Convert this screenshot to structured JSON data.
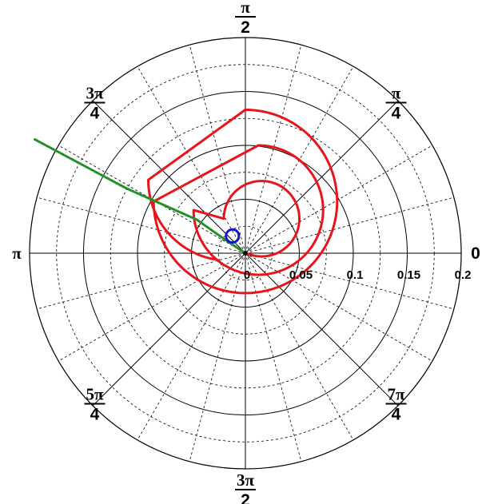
{
  "chart_data": {
    "type": "polar",
    "rlim": [
      0,
      0.2
    ],
    "r_ticks": [
      "0",
      "0.05",
      "0.1",
      "0.15",
      "0.2"
    ],
    "r_tick_values": [
      0,
      0.05,
      0.1,
      0.15,
      0.2
    ],
    "theta_tick_labels": [
      {
        "angle_deg": 0,
        "num": "0",
        "den": ""
      },
      {
        "angle_deg": 45,
        "num": "π",
        "den": "4"
      },
      {
        "angle_deg": 90,
        "num": "π",
        "den": "2"
      },
      {
        "angle_deg": 135,
        "num": "3π",
        "den": "4"
      },
      {
        "angle_deg": 180,
        "num": "π",
        "den": ""
      },
      {
        "angle_deg": 225,
        "num": "5π",
        "den": "4"
      },
      {
        "angle_deg": 270,
        "num": "3π",
        "den": "2"
      },
      {
        "angle_deg": 315,
        "num": "7π",
        "den": "4"
      }
    ],
    "grid": true,
    "grid_minor_radii": [
      0.025,
      0.075,
      0.125,
      0.175
    ],
    "grid_angle_step_deg": 15,
    "series": [
      {
        "style": "spiral",
        "color": "#e8141c",
        "circles": [
          {
            "center_x": 0.015,
            "center_y": 0.032,
            "radius": 0.035,
            "start_deg": 240,
            "end_deg": 540
          },
          {
            "center_x": 0.012,
            "center_y": 0.04,
            "radius": 0.06,
            "start_deg": 180,
            "end_deg": 450
          },
          {
            "center_x": 0.0,
            "center_y": 0.048,
            "radius": 0.085,
            "start_deg": 180,
            "end_deg": 450
          },
          {
            "center_x": -0.015,
            "center_y": 0.068,
            "radius": 0.075,
            "start_deg": 180,
            "end_deg": 260
          }
        ]
      },
      {
        "style": "line",
        "color": "#1a9e22",
        "points": [
          [
            0,
            0
          ],
          [
            -0.018,
            0.012
          ],
          [
            -0.045,
            0.031
          ],
          [
            -0.11,
            0.06
          ],
          [
            -0.196,
            0.106
          ]
        ]
      },
      {
        "style": "marker",
        "color": "#1515c8",
        "center": [
          -0.012,
          0.016
        ],
        "marker_radius": 0.006
      },
      {
        "style": "marker",
        "color": "#000000",
        "center": [
          0,
          0
        ],
        "marker_radius": 0.002
      }
    ]
  },
  "colors": {
    "background": "#ffffff",
    "grid_major": "#000000",
    "grid_minor": "#000000",
    "spiral": "#e8141c",
    "line": "#1a9e22",
    "marker": "#1515c8"
  }
}
